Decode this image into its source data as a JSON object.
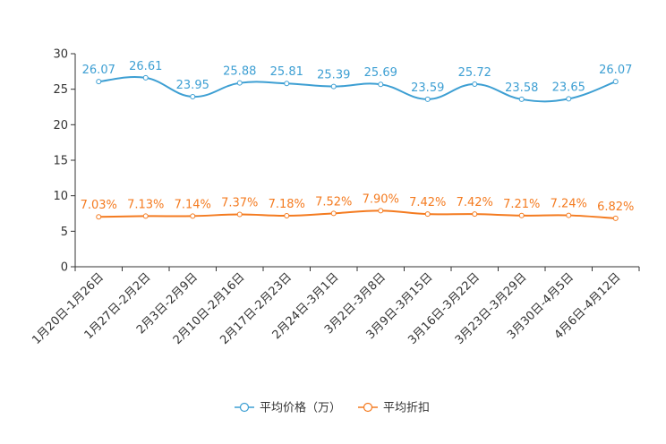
{
  "chart_data": {
    "type": "line",
    "title": "",
    "xlabel": "",
    "ylabel": "",
    "ylim": [
      0,
      30
    ],
    "yticks": [
      0,
      5,
      10,
      15,
      20,
      25,
      30
    ],
    "categories": [
      "1月20日-1月26日",
      "1月27日-2月2日",
      "2月3日-2月9日",
      "2月10日-2月16日",
      "2月17日-2月23日",
      "2月24日-3月1日",
      "3月2日-3月8日",
      "3月9日-3月15日",
      "3月16日-3月22日",
      "3月23日-3月29日",
      "3月30日-4月5日",
      "4月6日-4月12日"
    ],
    "series": [
      {
        "name": "平均价格（万）",
        "color": "#3d9fd3",
        "values": [
          26.07,
          26.61,
          23.95,
          25.88,
          25.81,
          25.39,
          25.69,
          23.59,
          25.72,
          23.58,
          23.65,
          26.07
        ],
        "labels": [
          "26.07",
          "26.61",
          "23.95",
          "25.88",
          "25.81",
          "25.39",
          "25.69",
          "23.59",
          "25.72",
          "23.58",
          "23.65",
          "26.07"
        ]
      },
      {
        "name": "平均折扣",
        "color": "#f47b20",
        "values": [
          7.03,
          7.13,
          7.14,
          7.37,
          7.18,
          7.52,
          7.9,
          7.42,
          7.42,
          7.21,
          7.24,
          6.82
        ],
        "labels": [
          "7.03%",
          "7.13%",
          "7.14%",
          "7.37%",
          "7.18%",
          "7.52%",
          "7.90%",
          "7.42%",
          "7.42%",
          "7.21%",
          "7.24%",
          "6.82%"
        ]
      }
    ],
    "legend_position": "bottom-center"
  }
}
